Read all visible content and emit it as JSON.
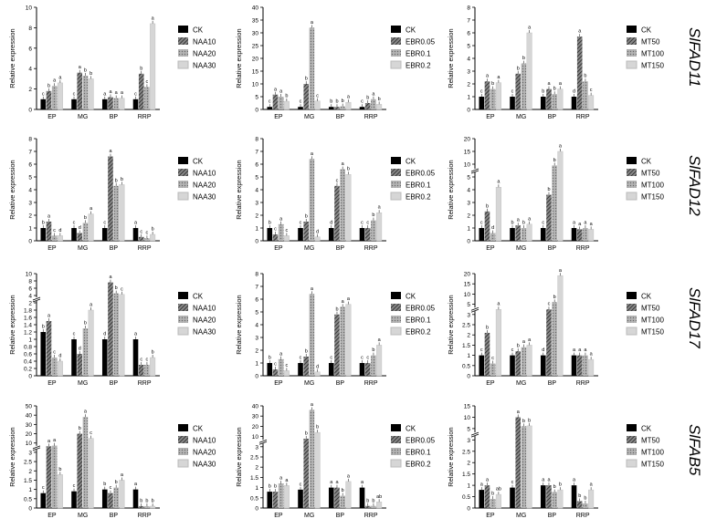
{
  "colors": {
    "ck": "#000000",
    "series2": "#5a5a5a",
    "series3": "#9a9a9a",
    "series4": "#d6d6d6",
    "axis": "#000000",
    "text": "#000000"
  },
  "genes": [
    "SlFAD11",
    "SlFAD12",
    "SlFAD17",
    "SlFAB5"
  ],
  "chart_data": [
    {
      "type": "bar",
      "row": 0,
      "col": 0,
      "gene": "SlFAD11",
      "categories": [
        "EP",
        "MG",
        "BP",
        "RRP"
      ],
      "ylabel": "Relative expression",
      "yticks": [
        0,
        2,
        4,
        6,
        8,
        10
      ],
      "legend": [
        "CK",
        "NAA10",
        "NAA20",
        "NAA30"
      ],
      "series": [
        {
          "name": "CK",
          "values": [
            1.0,
            1.0,
            1.0,
            1.0
          ],
          "letters": [
            "c",
            "c",
            "a",
            "c"
          ]
        },
        {
          "name": "NAA10",
          "values": [
            1.8,
            3.6,
            1.2,
            3.5
          ],
          "letters": [
            "b",
            "a",
            "a",
            "b"
          ]
        },
        {
          "name": "NAA20",
          "values": [
            2.3,
            3.3,
            1.1,
            2.2
          ],
          "letters": [
            "a",
            "b",
            "a",
            "c"
          ]
        },
        {
          "name": "NAA30",
          "values": [
            2.6,
            3.0,
            1.1,
            8.4
          ],
          "letters": [
            "a",
            "b",
            "a",
            "a"
          ]
        }
      ]
    },
    {
      "type": "bar",
      "row": 0,
      "col": 1,
      "gene": "SlFAD11",
      "categories": [
        "EP",
        "MG",
        "BP",
        "RRP"
      ],
      "ylabel": "Relative expression",
      "yticks": [
        0,
        5,
        10,
        15,
        20,
        25,
        30,
        35,
        40
      ],
      "legend": [
        "CK",
        "EBR0.05",
        "EBR0.1",
        "EBR0.2"
      ],
      "series": [
        {
          "name": "CK",
          "values": [
            1.0,
            1.0,
            1.0,
            1.0
          ],
          "letters": [
            "c",
            "c",
            "b",
            "c"
          ]
        },
        {
          "name": "EBR0.05",
          "values": [
            5.8,
            10.0,
            1.0,
            2.5
          ],
          "letters": [
            "a",
            "b",
            "b",
            "b"
          ]
        },
        {
          "name": "EBR0.1",
          "values": [
            5.0,
            32.0,
            1.2,
            4.0
          ],
          "letters": [
            "a",
            "a",
            "b",
            "a"
          ]
        },
        {
          "name": "EBR0.2",
          "values": [
            3.2,
            3.3,
            2.8,
            2.0
          ],
          "letters": [
            "b",
            "c",
            "a",
            "b"
          ]
        }
      ]
    },
    {
      "type": "bar",
      "row": 0,
      "col": 2,
      "gene": "SlFAD11",
      "categories": [
        "EP",
        "MG",
        "BP",
        "RRP"
      ],
      "ylabel": "Relative expression",
      "yticks": [
        0,
        1,
        2,
        3,
        4,
        5,
        6,
        7,
        8
      ],
      "legend": [
        "CK",
        "MT50",
        "MT100",
        "MT150"
      ],
      "series": [
        {
          "name": "CK",
          "values": [
            1.0,
            1.0,
            1.0,
            1.0
          ],
          "letters": [
            "c",
            "c",
            "b",
            "d"
          ]
        },
        {
          "name": "MT50",
          "values": [
            2.2,
            2.8,
            1.6,
            5.7
          ],
          "letters": [
            "a",
            "b",
            "a",
            "a"
          ]
        },
        {
          "name": "MT100",
          "values": [
            1.6,
            3.6,
            1.2,
            2.2
          ],
          "letters": [
            "b",
            "b",
            "b",
            "b"
          ]
        },
        {
          "name": "MT150",
          "values": [
            2.1,
            6.0,
            1.6,
            1.1
          ],
          "letters": [
            "a",
            "a",
            "a",
            "c"
          ]
        }
      ]
    },
    {
      "type": "bar",
      "row": 1,
      "col": 0,
      "gene": "SlFAD12",
      "categories": [
        "EP",
        "MG",
        "BP",
        "RRP"
      ],
      "ylabel": "Relative expression",
      "yticks": [
        0,
        1,
        2,
        3,
        4,
        5,
        6,
        7,
        8
      ],
      "legend": [
        "CK",
        "NAA10",
        "NAA20",
        "NAA30"
      ],
      "series": [
        {
          "name": "CK",
          "values": [
            1.0,
            1.0,
            1.0,
            1.0
          ],
          "letters": [
            "b",
            "c",
            "c",
            "a"
          ]
        },
        {
          "name": "NAA10",
          "values": [
            1.5,
            0.6,
            6.6,
            0.3
          ],
          "letters": [
            "a",
            "d",
            "a",
            "c"
          ]
        },
        {
          "name": "NAA20",
          "values": [
            0.4,
            1.4,
            4.3,
            0.2
          ],
          "letters": [
            "c",
            "b",
            "b",
            "c"
          ]
        },
        {
          "name": "NAA30",
          "values": [
            0.4,
            2.1,
            4.4,
            0.5
          ],
          "letters": [
            "d",
            "a",
            "b",
            "b"
          ]
        }
      ]
    },
    {
      "type": "bar",
      "row": 1,
      "col": 1,
      "gene": "SlFAD12",
      "categories": [
        "EP",
        "MG",
        "BP",
        "RRP"
      ],
      "ylabel": "Relative expression",
      "yticks": [
        0,
        1,
        2,
        3,
        4,
        5,
        6,
        7,
        8
      ],
      "legend": [
        "CK",
        "EBR0.05",
        "EBR0.1",
        "EBR0.2"
      ],
      "series": [
        {
          "name": "CK",
          "values": [
            1.0,
            1.0,
            1.0,
            1.0
          ],
          "letters": [
            "b",
            "c",
            "d",
            "c"
          ]
        },
        {
          "name": "EBR0.05",
          "values": [
            0.5,
            1.5,
            4.3,
            1.0
          ],
          "letters": [
            "c",
            "b",
            "c",
            "c"
          ]
        },
        {
          "name": "EBR0.1",
          "values": [
            1.3,
            6.4,
            5.6,
            1.6
          ],
          "letters": [
            "a",
            "a",
            "a",
            "b"
          ]
        },
        {
          "name": "EBR0.2",
          "values": [
            0.4,
            0.3,
            5.2,
            2.2
          ],
          "letters": [
            "c",
            "d",
            "b",
            "a"
          ]
        }
      ]
    },
    {
      "type": "bar",
      "row": 1,
      "col": 2,
      "gene": "SlFAD12",
      "categories": [
        "EP",
        "MG",
        "BP",
        "RRP"
      ],
      "ylabel": "Relative expression",
      "yticks": [
        0,
        1,
        2,
        3,
        4,
        5,
        10,
        15,
        20
      ],
      "legend": [
        "CK",
        "MT50",
        "MT100",
        "MT150"
      ],
      "series": [
        {
          "name": "CK",
          "values": [
            1.0,
            1.0,
            1.0,
            1.0
          ],
          "letters": [
            "c",
            "b",
            "c",
            "a"
          ]
        },
        {
          "name": "MT50",
          "values": [
            2.3,
            1.2,
            3.6,
            0.9
          ],
          "letters": [
            "b",
            "a",
            "b",
            "a"
          ]
        },
        {
          "name": "MT100",
          "values": [
            0.6,
            1.0,
            9.5,
            1.0
          ],
          "letters": [
            "d",
            "b",
            "b",
            "a"
          ]
        },
        {
          "name": "MT150",
          "values": [
            4.2,
            1.3,
            15.0,
            0.9
          ],
          "letters": [
            "a",
            "a",
            "a",
            "a"
          ]
        }
      ]
    },
    {
      "type": "bar",
      "row": 2,
      "col": 0,
      "gene": "SlFAD17",
      "categories": [
        "EP",
        "MG",
        "BP",
        "RRP"
      ],
      "ylabel": "Relative expression",
      "yticks": [
        0,
        0.2,
        0.4,
        0.6,
        0.8,
        1.0,
        1.2,
        1.4,
        1.6,
        1.8,
        2.0,
        4,
        6,
        8,
        10
      ],
      "legend": [
        "CK",
        "NAA10",
        "NAA20",
        "NAA30"
      ],
      "series": [
        {
          "name": "CK",
          "values": [
            1.2,
            1.0,
            1.0,
            1.0
          ],
          "letters": [
            "b",
            "c",
            "d",
            "a"
          ]
        },
        {
          "name": "NAA10",
          "values": [
            1.5,
            0.6,
            7.6,
            0.3
          ],
          "letters": [
            "a",
            "d",
            "a",
            "c"
          ]
        },
        {
          "name": "NAA20",
          "values": [
            0.5,
            1.3,
            4.6,
            0.3
          ],
          "letters": [
            "c",
            "b",
            "b",
            "c"
          ]
        },
        {
          "name": "NAA30",
          "values": [
            0.4,
            1.8,
            4.3,
            0.5
          ],
          "letters": [
            "d",
            "a",
            "c",
            "b"
          ]
        }
      ]
    },
    {
      "type": "bar",
      "row": 2,
      "col": 1,
      "gene": "SlFAD17",
      "categories": [
        "EP",
        "MG",
        "BP",
        "RRP"
      ],
      "ylabel": "Relative expression",
      "yticks": [
        0,
        1,
        2,
        3,
        4,
        5,
        6,
        7,
        8
      ],
      "legend": [
        "CK",
        "EBR0.05",
        "EBR0.1",
        "EBR0.2"
      ],
      "series": [
        {
          "name": "CK",
          "values": [
            1.0,
            1.0,
            1.0,
            1.0
          ],
          "letters": [
            "b",
            "c",
            "c",
            "c"
          ]
        },
        {
          "name": "EBR0.05",
          "values": [
            0.5,
            1.5,
            4.8,
            1.0
          ],
          "letters": [
            "c",
            "b",
            "b",
            "c"
          ]
        },
        {
          "name": "EBR0.1",
          "values": [
            1.3,
            6.4,
            5.4,
            1.6
          ],
          "letters": [
            "a",
            "a",
            "a",
            "b"
          ]
        },
        {
          "name": "EBR0.2",
          "values": [
            0.4,
            0.3,
            5.6,
            2.4
          ],
          "letters": [
            "c",
            "d",
            "a",
            "a"
          ]
        }
      ]
    },
    {
      "type": "bar",
      "row": 2,
      "col": 2,
      "gene": "SlFAD17",
      "categories": [
        "EP",
        "MG",
        "BP",
        "RRP"
      ],
      "ylabel": "Relative expression",
      "yticks": [
        0,
        0.5,
        1.0,
        1.5,
        2.0,
        2.5,
        3,
        5,
        10,
        15,
        20
      ],
      "legend": [
        "CK",
        "MT50",
        "MT100",
        "MT150"
      ],
      "series": [
        {
          "name": "CK",
          "values": [
            1.0,
            1.0,
            1.0,
            1.0
          ],
          "letters": [
            "c",
            "c",
            "d",
            "a"
          ]
        },
        {
          "name": "MT50",
          "values": [
            2.1,
            1.2,
            4.0,
            1.0
          ],
          "letters": [
            "b",
            "b",
            "c",
            "a"
          ]
        },
        {
          "name": "MT100",
          "values": [
            0.6,
            1.4,
            6.0,
            1.0
          ],
          "letters": [
            "c",
            "a",
            "b",
            "a"
          ]
        },
        {
          "name": "MT150",
          "values": [
            4.0,
            1.5,
            19.0,
            0.8
          ],
          "letters": [
            "a",
            "a",
            "a",
            "a"
          ]
        }
      ]
    },
    {
      "type": "bar",
      "row": 3,
      "col": 0,
      "gene": "SlFAB5",
      "categories": [
        "EP",
        "MG",
        "BP",
        "RRP"
      ],
      "ylabel": "Relative expression",
      "yticks": [
        0,
        0.5,
        1.0,
        1.5,
        2.0,
        2.5,
        3,
        10,
        20,
        30,
        40,
        50
      ],
      "legend": [
        "CK",
        "NAA10",
        "NAA20",
        "NAA30"
      ],
      "series": [
        {
          "name": "CK",
          "values": [
            0.8,
            0.9,
            1.0,
            1.0
          ],
          "letters": [
            "c",
            "c",
            "b",
            "a"
          ]
        },
        {
          "name": "NAA10",
          "values": [
            7.5,
            20.0,
            0.8,
            0.1
          ],
          "letters": [
            "a",
            "b",
            "c",
            "b"
          ]
        },
        {
          "name": "NAA20",
          "values": [
            8.0,
            38.0,
            1.1,
            0.1
          ],
          "letters": [
            "a",
            "a",
            "b",
            "b"
          ]
        },
        {
          "name": "NAA30",
          "values": [
            1.8,
            15.0,
            1.5,
            0.1
          ],
          "letters": [
            "b",
            "c",
            "a",
            "b"
          ]
        }
      ]
    },
    {
      "type": "bar",
      "row": 3,
      "col": 1,
      "gene": "SlFAB5",
      "categories": [
        "EP",
        "MG",
        "BP",
        "RRP"
      ],
      "ylabel": "Relative expression",
      "yticks": [
        0,
        0.5,
        1.0,
        1.5,
        2.0,
        2.5,
        3,
        10,
        20,
        30,
        40
      ],
      "legend": [
        "CK",
        "EBR0.05",
        "EBR0.1",
        "EBR0.2"
      ],
      "series": [
        {
          "name": "CK",
          "values": [
            0.8,
            0.9,
            1.0,
            1.0
          ],
          "letters": [
            "b",
            "c",
            "a",
            "a"
          ]
        },
        {
          "name": "EBR0.05",
          "values": [
            0.8,
            8.5,
            1.0,
            0.1
          ],
          "letters": [
            "b",
            "b",
            "a",
            "b"
          ]
        },
        {
          "name": "EBR0.1",
          "values": [
            1.2,
            36.0,
            0.6,
            0.1
          ],
          "letters": [
            "a",
            "a",
            "b",
            "b"
          ]
        },
        {
          "name": "EBR0.2",
          "values": [
            1.1,
            14.0,
            1.3,
            0.3
          ],
          "letters": [
            "a",
            "b",
            "a",
            "ab"
          ]
        }
      ]
    },
    {
      "type": "bar",
      "row": 3,
      "col": 2,
      "gene": "SlFAB5",
      "categories": [
        "EP",
        "MG",
        "BP",
        "RRP"
      ],
      "ylabel": "Relative expression",
      "yticks": [
        0,
        0.5,
        1.0,
        1.5,
        2.0,
        2.5,
        3,
        5,
        10,
        15
      ],
      "legend": [
        "CK",
        "MT50",
        "MT100",
        "MT150"
      ],
      "series": [
        {
          "name": "CK",
          "values": [
            0.8,
            0.9,
            1.0,
            1.0
          ],
          "letters": [
            "a",
            "c",
            "a",
            "a"
          ]
        },
        {
          "name": "MT50",
          "values": [
            1.0,
            10.0,
            1.0,
            0.3
          ],
          "letters": [
            "a",
            "a",
            "a",
            "b"
          ]
        },
        {
          "name": "MT100",
          "values": [
            0.4,
            6.0,
            0.7,
            0.2
          ],
          "letters": [
            "b",
            "b",
            "b",
            "b"
          ]
        },
        {
          "name": "MT150",
          "values": [
            0.6,
            6.2,
            0.8,
            0.8
          ],
          "letters": [
            "ab",
            "b",
            "b",
            "a"
          ]
        }
      ]
    }
  ]
}
